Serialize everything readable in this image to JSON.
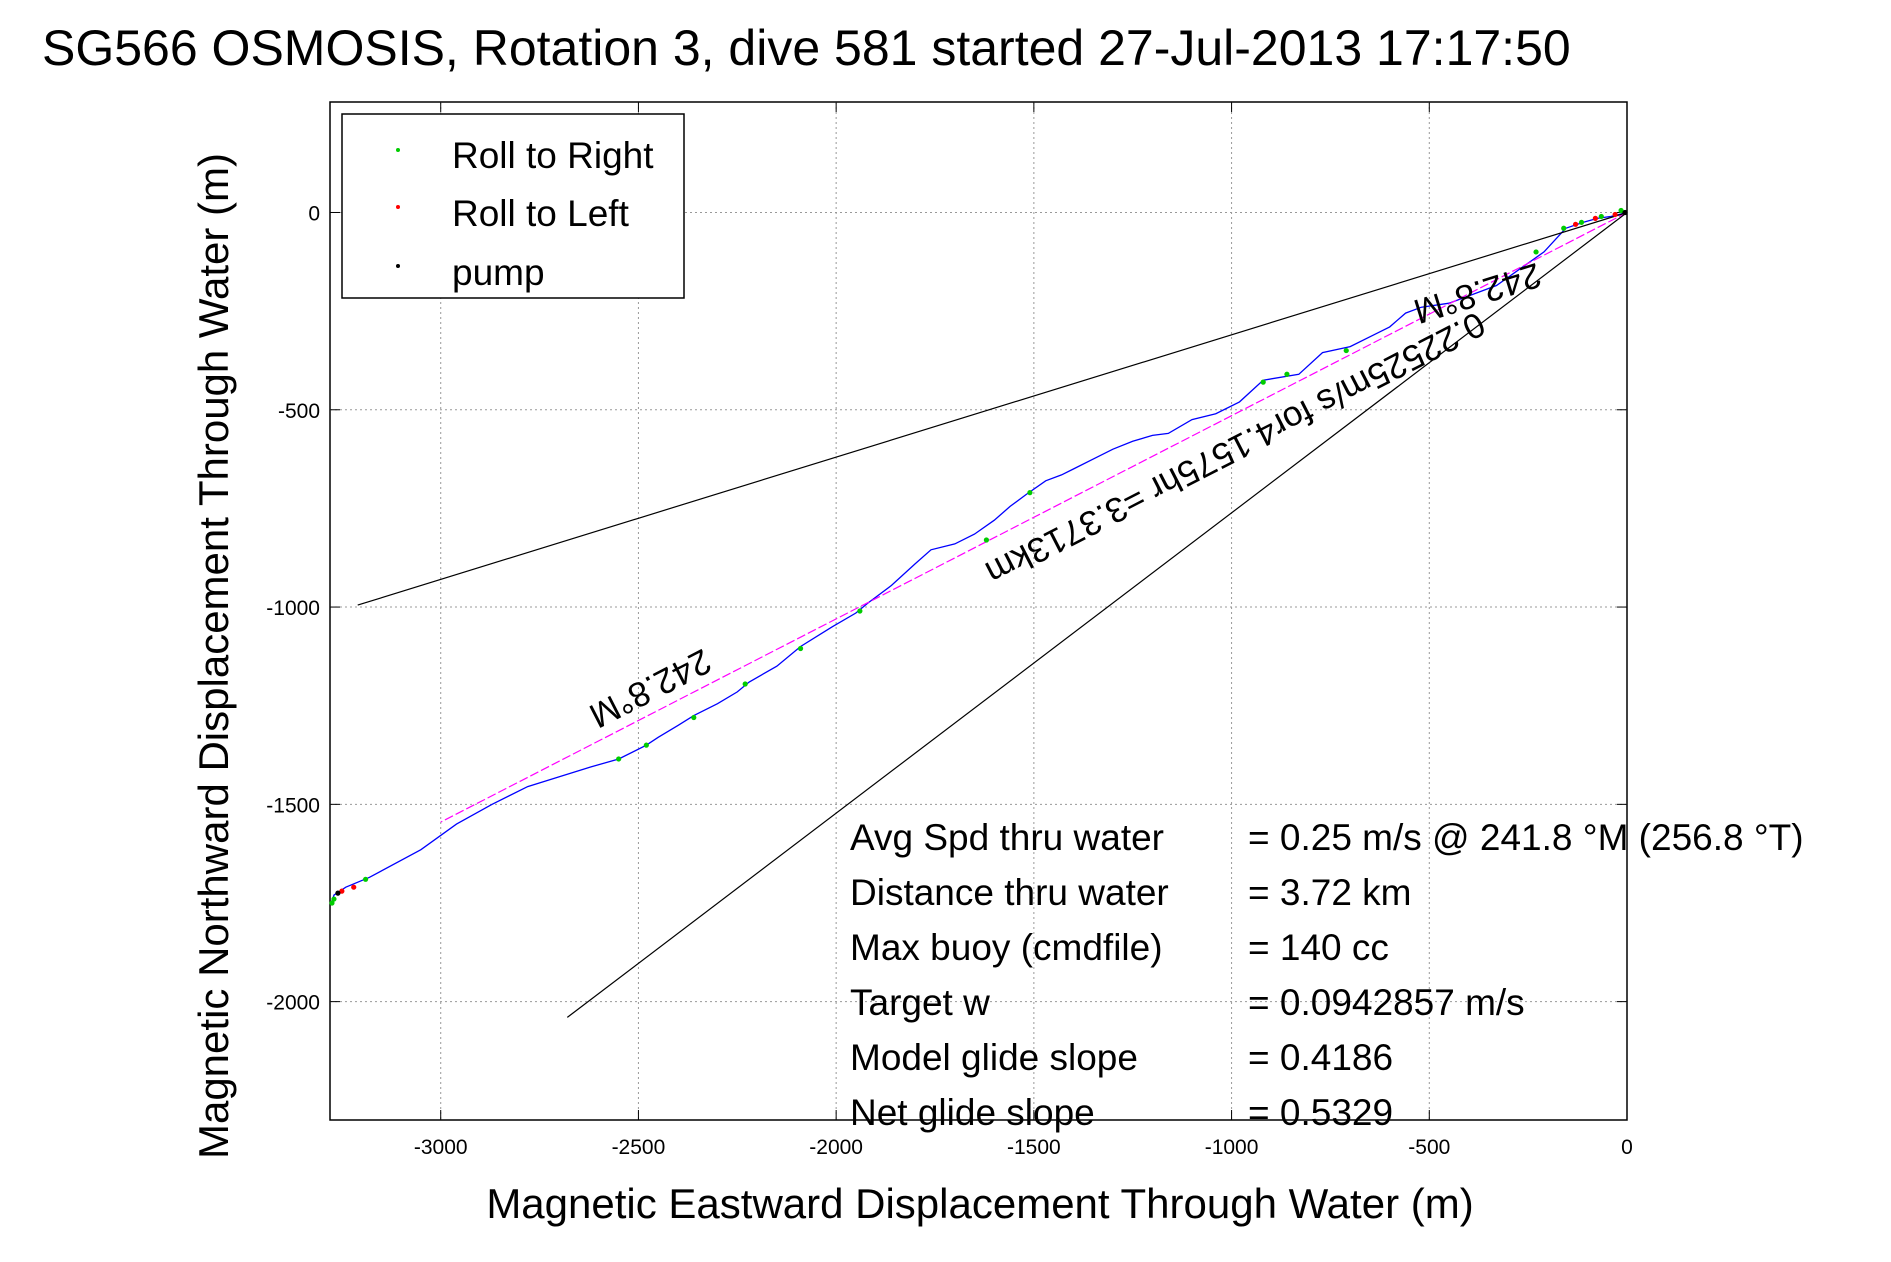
{
  "chart_data": {
    "type": "line",
    "title": "SG566 OSMOSIS, Rotation 3, dive 581 started 27-Jul-2013 17:17:50",
    "xlabel": "Magnetic Eastward Displacement Through Water (m)",
    "ylabel": "Magnetic Northward Displacement Through Water (m)",
    "xlim": [
      -3280,
      0
    ],
    "ylim": [
      -2300,
      280
    ],
    "xticks": [
      -3000,
      -2500,
      -2000,
      -1500,
      -1000,
      -500,
      0
    ],
    "yticks": [
      0,
      -500,
      -1000,
      -1500,
      -2000
    ],
    "grid": true,
    "legend_position": "top-left",
    "legend": [
      {
        "label": "Roll to Right",
        "color": "#00cc00"
      },
      {
        "label": "Roll to Left",
        "color": "#ff0000"
      },
      {
        "label": "pump",
        "color": "#000000"
      }
    ],
    "series": [
      {
        "kind": "track",
        "color": "#0000ff",
        "points": [
          [
            0,
            0
          ],
          [
            -40,
            -10
          ],
          [
            -75,
            -15
          ],
          [
            -110,
            -25
          ],
          [
            -155,
            -40
          ],
          [
            -210,
            -100
          ],
          [
            -330,
            -185
          ],
          [
            -450,
            -230
          ],
          [
            -520,
            -240
          ],
          [
            -560,
            -255
          ],
          [
            -600,
            -290
          ],
          [
            -640,
            -310
          ],
          [
            -700,
            -340
          ],
          [
            -770,
            -355
          ],
          [
            -830,
            -410
          ],
          [
            -920,
            -425
          ],
          [
            -980,
            -480
          ],
          [
            -1040,
            -510
          ],
          [
            -1100,
            -525
          ],
          [
            -1160,
            -560
          ],
          [
            -1200,
            -565
          ],
          [
            -1250,
            -580
          ],
          [
            -1300,
            -600
          ],
          [
            -1350,
            -625
          ],
          [
            -1400,
            -650
          ],
          [
            -1430,
            -665
          ],
          [
            -1470,
            -680
          ],
          [
            -1520,
            -715
          ],
          [
            -1560,
            -745
          ],
          [
            -1600,
            -780
          ],
          [
            -1650,
            -815
          ],
          [
            -1700,
            -840
          ],
          [
            -1760,
            -855
          ],
          [
            -1800,
            -890
          ],
          [
            -1860,
            -945
          ],
          [
            -1920,
            -990
          ],
          [
            -1950,
            -1015
          ],
          [
            -2010,
            -1050
          ],
          [
            -2090,
            -1100
          ],
          [
            -2150,
            -1150
          ],
          [
            -2220,
            -1190
          ],
          [
            -2250,
            -1215
          ],
          [
            -2300,
            -1245
          ],
          [
            -2360,
            -1275
          ],
          [
            -2400,
            -1300
          ],
          [
            -2450,
            -1330
          ],
          [
            -2480,
            -1350
          ],
          [
            -2550,
            -1385
          ],
          [
            -2620,
            -1405
          ],
          [
            -2700,
            -1430
          ],
          [
            -2780,
            -1455
          ],
          [
            -2870,
            -1500
          ],
          [
            -2960,
            -1550
          ],
          [
            -3050,
            -1615
          ],
          [
            -3180,
            -1685
          ],
          [
            -3240,
            -1710
          ],
          [
            -3270,
            -1730
          ],
          [
            -3275,
            -1745
          ]
        ]
      },
      {
        "kind": "average-course",
        "color": "#ff00ff",
        "points": [
          [
            0,
            0
          ],
          [
            -3000,
            -1545
          ]
        ]
      },
      {
        "kind": "envelope",
        "color": "#000000",
        "points": [
          [
            0,
            0
          ],
          [
            -3210,
            -995
          ]
        ]
      },
      {
        "kind": "envelope",
        "color": "#000000",
        "points": [
          [
            0,
            0
          ],
          [
            -2680,
            -2040
          ]
        ]
      }
    ],
    "markers": {
      "roll_to_right": [
        [
          -15,
          5
        ],
        [
          -65,
          -10
        ],
        [
          -115,
          -25
        ],
        [
          -160,
          -40
        ],
        [
          -230,
          -100
        ],
        [
          -710,
          -350
        ],
        [
          -860,
          -410
        ],
        [
          -920,
          -430
        ],
        [
          -1510,
          -710
        ],
        [
          -1620,
          -830
        ],
        [
          -1940,
          -1010
        ],
        [
          -2090,
          -1105
        ],
        [
          -2230,
          -1195
        ],
        [
          -2360,
          -1280
        ],
        [
          -2480,
          -1350
        ],
        [
          -2550,
          -1385
        ],
        [
          -3190,
          -1690
        ],
        [
          -3270,
          -1740
        ],
        [
          -3275,
          -1750
        ]
      ],
      "roll_to_left": [
        [
          -30,
          -5
        ],
        [
          -80,
          -15
        ],
        [
          -130,
          -30
        ],
        [
          -3220,
          -1710
        ],
        [
          -3250,
          -1720
        ]
      ],
      "pump": [
        [
          -5,
          0
        ],
        [
          -3260,
          -1725
        ]
      ]
    },
    "annotations": {
      "heading_upper": "242.8°M",
      "heading_lower": "242.8°M",
      "speed_summary": "0.22525m/s for4.1575hr =3.3713km"
    }
  },
  "stats": [
    {
      "label": "Avg Spd thru water",
      "value": "=  0.25 m/s @ 241.8 °M (256.8 °T)"
    },
    {
      "label": "Distance thru water",
      "value": "=  3.72 km"
    },
    {
      "label": "Max buoy (cmdfile)",
      "value": "= 140 cc"
    },
    {
      "label": "Target w",
      "value": "= 0.0942857 m/s"
    },
    {
      "label": "Model glide slope",
      "value": "= 0.4186"
    },
    {
      "label": "Net glide slope",
      "value": "= 0.5329"
    }
  ]
}
